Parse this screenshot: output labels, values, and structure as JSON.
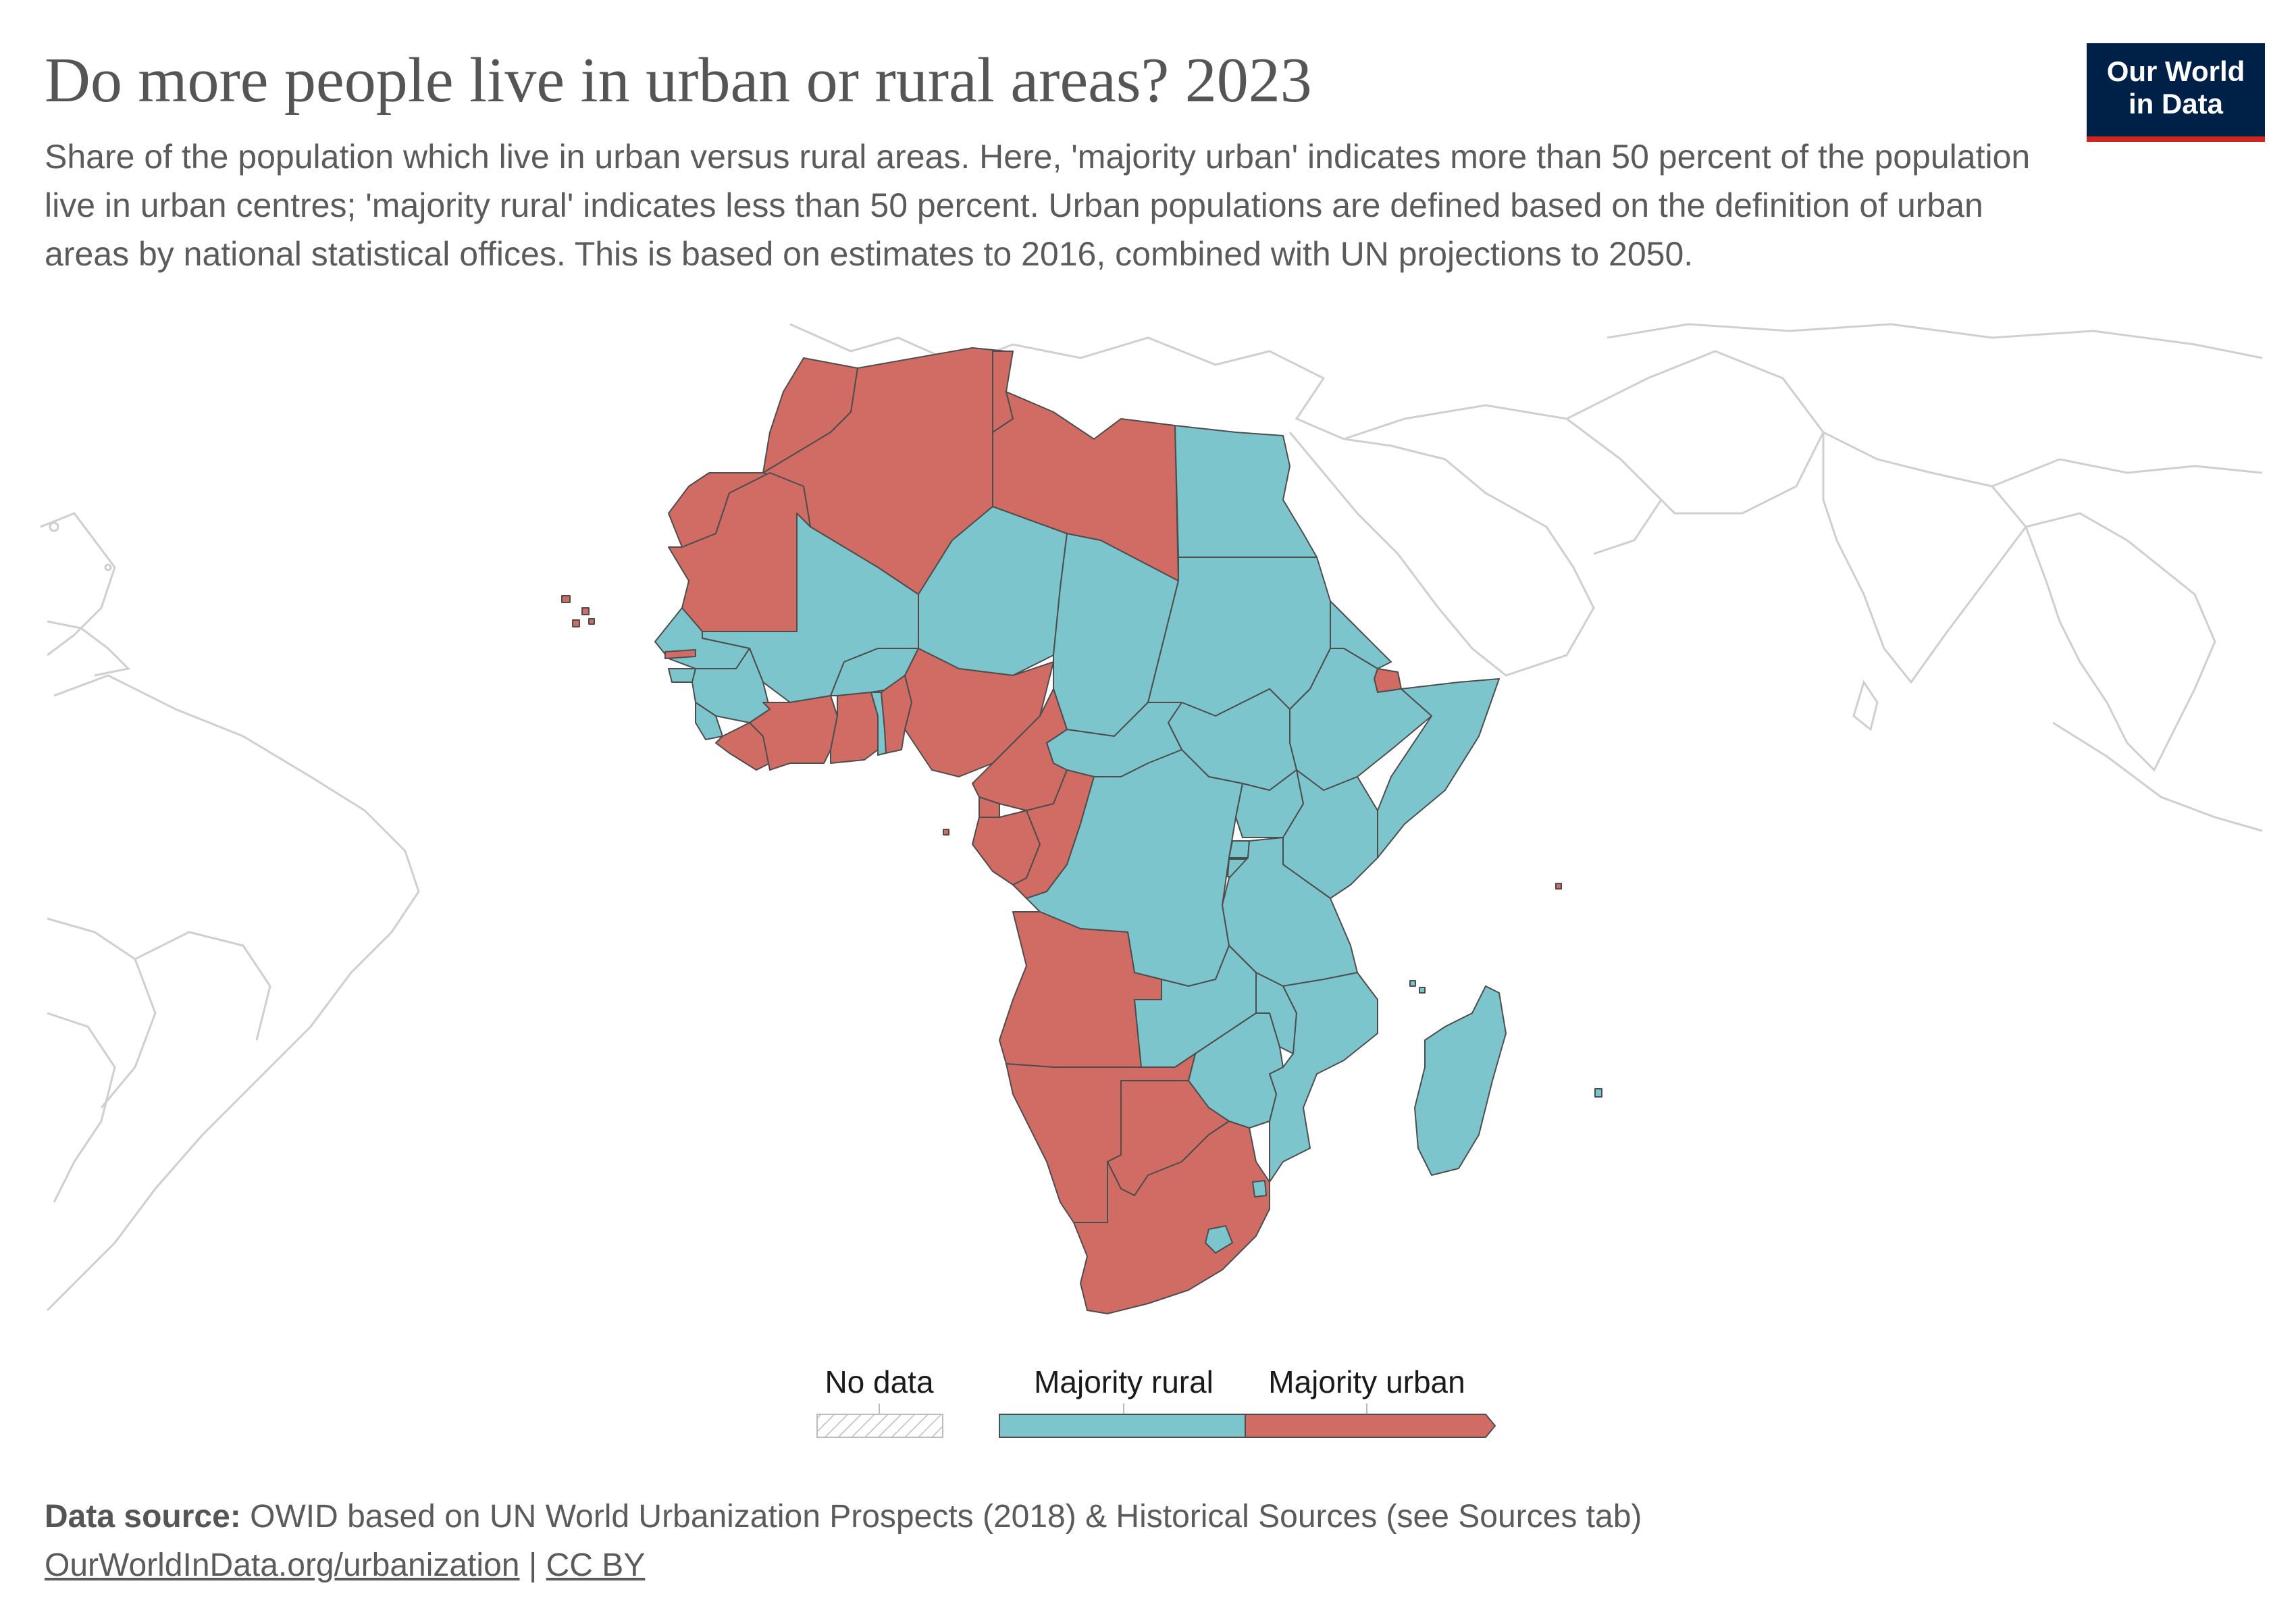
{
  "title": "Do more people live in urban or rural areas? 2023",
  "subtitle": "Share of the population which live in urban versus rural areas. Here, 'majority urban' indicates more than 50 percent of the population live in urban centres; 'majority rural' indicates less than 50 percent. Urban populations are defined based on the definition of urban areas by national statistical offices. This is based on estimates to 2016, combined with UN projections to 2050.",
  "logo": {
    "line1": "Our World",
    "line2": "in Data"
  },
  "colors": {
    "majority_rural": "#7cc5cc",
    "majority_urban": "#d16c64",
    "background_land_stroke": "#cfcfcf",
    "logo_bg": "#002147",
    "logo_accent": "#ce261e"
  },
  "legend": {
    "no_data": "No data",
    "majority_rural": "Majority rural",
    "majority_urban": "Majority urban"
  },
  "footer": {
    "source_label": "Data source:",
    "source_text": "OWID based on UN World Urbanization Prospects (2018) & Historical Sources (see Sources tab)",
    "link": "OurWorldInData.org/urbanization",
    "separator": "|",
    "license": "CC BY"
  },
  "regions": [
    {
      "name": "Morocco",
      "category": "majority_urban"
    },
    {
      "name": "Western Sahara",
      "category": "majority_urban"
    },
    {
      "name": "Algeria",
      "category": "majority_urban"
    },
    {
      "name": "Tunisia",
      "category": "majority_urban"
    },
    {
      "name": "Libya",
      "category": "majority_urban"
    },
    {
      "name": "Egypt",
      "category": "majority_rural"
    },
    {
      "name": "Mauritania",
      "category": "majority_urban"
    },
    {
      "name": "Mali",
      "category": "majority_rural"
    },
    {
      "name": "Niger",
      "category": "majority_rural"
    },
    {
      "name": "Chad",
      "category": "majority_rural"
    },
    {
      "name": "Sudan",
      "category": "majority_rural"
    },
    {
      "name": "Eritrea",
      "category": "majority_rural"
    },
    {
      "name": "Djibouti",
      "category": "majority_urban"
    },
    {
      "name": "Ethiopia",
      "category": "majority_rural"
    },
    {
      "name": "Somalia",
      "category": "majority_rural"
    },
    {
      "name": "South Sudan",
      "category": "majority_rural"
    },
    {
      "name": "Central African Republic",
      "category": "majority_rural"
    },
    {
      "name": "Senegal",
      "category": "majority_rural"
    },
    {
      "name": "Gambia",
      "category": "majority_urban"
    },
    {
      "name": "Guinea-Bissau",
      "category": "majority_rural"
    },
    {
      "name": "Guinea",
      "category": "majority_rural"
    },
    {
      "name": "Sierra Leone",
      "category": "majority_rural"
    },
    {
      "name": "Liberia",
      "category": "majority_urban"
    },
    {
      "name": "Cote d'Ivoire",
      "category": "majority_urban"
    },
    {
      "name": "Burkina Faso",
      "category": "majority_rural"
    },
    {
      "name": "Ghana",
      "category": "majority_urban"
    },
    {
      "name": "Togo",
      "category": "majority_rural"
    },
    {
      "name": "Benin",
      "category": "majority_urban"
    },
    {
      "name": "Nigeria",
      "category": "majority_urban"
    },
    {
      "name": "Cameroon",
      "category": "majority_urban"
    },
    {
      "name": "Equatorial Guinea",
      "category": "majority_urban"
    },
    {
      "name": "Gabon",
      "category": "majority_urban"
    },
    {
      "name": "Congo",
      "category": "majority_urban"
    },
    {
      "name": "Democratic Republic of Congo",
      "category": "majority_rural"
    },
    {
      "name": "Uganda",
      "category": "majority_rural"
    },
    {
      "name": "Kenya",
      "category": "majority_rural"
    },
    {
      "name": "Rwanda",
      "category": "majority_rural"
    },
    {
      "name": "Burundi",
      "category": "majority_rural"
    },
    {
      "name": "Tanzania",
      "category": "majority_rural"
    },
    {
      "name": "Angola",
      "category": "majority_urban"
    },
    {
      "name": "Zambia",
      "category": "majority_rural"
    },
    {
      "name": "Malawi",
      "category": "majority_rural"
    },
    {
      "name": "Mozambique",
      "category": "majority_rural"
    },
    {
      "name": "Zimbabwe",
      "category": "majority_rural"
    },
    {
      "name": "Namibia",
      "category": "majority_urban"
    },
    {
      "name": "Botswana",
      "category": "majority_urban"
    },
    {
      "name": "South Africa",
      "category": "majority_urban"
    },
    {
      "name": "Lesotho",
      "category": "majority_rural"
    },
    {
      "name": "Eswatini",
      "category": "majority_rural"
    },
    {
      "name": "Madagascar",
      "category": "majority_rural"
    },
    {
      "name": "Cape Verde",
      "category": "majority_urban"
    },
    {
      "name": "Sao Tome and Principe",
      "category": "majority_urban"
    },
    {
      "name": "Comoros",
      "category": "majority_rural"
    },
    {
      "name": "Mauritius",
      "category": "majority_rural"
    },
    {
      "name": "Seychelles",
      "category": "majority_urban"
    }
  ]
}
